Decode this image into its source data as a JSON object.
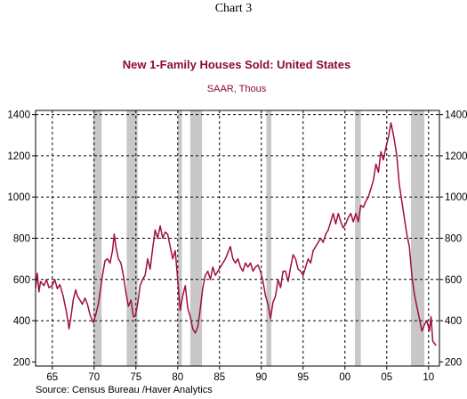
{
  "chart_label": "Chart 3",
  "chart_data": {
    "type": "line",
    "title": "New 1-Family Houses Sold: United States",
    "subtitle": "SAAR, Thous",
    "source": "Source:  Census Bureau /Haver Analytics",
    "x_ticks": [
      {
        "year": 1965,
        "label": "65"
      },
      {
        "year": 1970,
        "label": "70"
      },
      {
        "year": 1975,
        "label": "75"
      },
      {
        "year": 1980,
        "label": "80"
      },
      {
        "year": 1985,
        "label": "85"
      },
      {
        "year": 1990,
        "label": "90"
      },
      {
        "year": 1995,
        "label": "95"
      },
      {
        "year": 2000,
        "label": "00"
      },
      {
        "year": 2005,
        "label": "05"
      },
      {
        "year": 2010,
        "label": "10"
      }
    ],
    "xlim": [
      1963,
      2011.3
    ],
    "ylim": [
      180,
      1420
    ],
    "y_ticks": [
      200,
      400,
      600,
      800,
      1000,
      1200,
      1400
    ],
    "grid": true,
    "line_color": "#a0103a",
    "recession_color": "#c8c8c8",
    "recessions": [
      [
        1969.9,
        1970.9
      ],
      [
        1973.9,
        1975.2
      ],
      [
        1980.0,
        1980.5
      ],
      [
        1981.5,
        1982.9
      ],
      [
        1990.6,
        1991.2
      ],
      [
        2001.2,
        2001.9
      ],
      [
        2007.9,
        2009.5
      ]
    ],
    "series": [
      {
        "points": [
          [
            1963.0,
            560
          ],
          [
            1963.2,
            630
          ],
          [
            1963.4,
            540
          ],
          [
            1963.6,
            590
          ],
          [
            1963.8,
            580
          ],
          [
            1964.0,
            570
          ],
          [
            1964.3,
            600
          ],
          [
            1964.6,
            560
          ],
          [
            1965.0,
            570
          ],
          [
            1965.3,
            600
          ],
          [
            1965.6,
            555
          ],
          [
            1965.9,
            575
          ],
          [
            1966.3,
            520
          ],
          [
            1966.7,
            440
          ],
          [
            1967.0,
            360
          ],
          [
            1967.2,
            410
          ],
          [
            1967.5,
            500
          ],
          [
            1967.8,
            550
          ],
          [
            1968.0,
            520
          ],
          [
            1968.3,
            500
          ],
          [
            1968.6,
            480
          ],
          [
            1968.9,
            510
          ],
          [
            1969.2,
            480
          ],
          [
            1969.5,
            430
          ],
          [
            1969.9,
            390
          ],
          [
            1970.2,
            430
          ],
          [
            1970.5,
            480
          ],
          [
            1970.8,
            560
          ],
          [
            1971.0,
            620
          ],
          [
            1971.3,
            690
          ],
          [
            1971.6,
            700
          ],
          [
            1971.9,
            680
          ],
          [
            1972.2,
            740
          ],
          [
            1972.4,
            820
          ],
          [
            1972.6,
            760
          ],
          [
            1972.9,
            700
          ],
          [
            1973.2,
            680
          ],
          [
            1973.5,
            620
          ],
          [
            1973.8,
            540
          ],
          [
            1974.1,
            470
          ],
          [
            1974.4,
            500
          ],
          [
            1974.7,
            420
          ],
          [
            1974.9,
            420
          ],
          [
            1975.2,
            480
          ],
          [
            1975.5,
            570
          ],
          [
            1975.8,
            600
          ],
          [
            1976.1,
            620
          ],
          [
            1976.4,
            700
          ],
          [
            1976.7,
            650
          ],
          [
            1977.0,
            750
          ],
          [
            1977.3,
            840
          ],
          [
            1977.6,
            800
          ],
          [
            1977.9,
            860
          ],
          [
            1978.2,
            800
          ],
          [
            1978.5,
            830
          ],
          [
            1978.8,
            820
          ],
          [
            1979.1,
            760
          ],
          [
            1979.4,
            700
          ],
          [
            1979.7,
            740
          ],
          [
            1980.0,
            600
          ],
          [
            1980.3,
            450
          ],
          [
            1980.6,
            520
          ],
          [
            1980.9,
            570
          ],
          [
            1981.2,
            460
          ],
          [
            1981.5,
            420
          ],
          [
            1981.8,
            360
          ],
          [
            1982.1,
            340
          ],
          [
            1982.4,
            370
          ],
          [
            1982.7,
            460
          ],
          [
            1983.0,
            560
          ],
          [
            1983.3,
            620
          ],
          [
            1983.6,
            640
          ],
          [
            1983.9,
            600
          ],
          [
            1984.2,
            660
          ],
          [
            1984.5,
            620
          ],
          [
            1984.8,
            640
          ],
          [
            1985.1,
            660
          ],
          [
            1985.4,
            680
          ],
          [
            1985.7,
            700
          ],
          [
            1986.0,
            730
          ],
          [
            1986.3,
            760
          ],
          [
            1986.6,
            700
          ],
          [
            1986.9,
            680
          ],
          [
            1987.2,
            700
          ],
          [
            1987.5,
            660
          ],
          [
            1987.8,
            640
          ],
          [
            1988.1,
            680
          ],
          [
            1988.4,
            660
          ],
          [
            1988.7,
            680
          ],
          [
            1989.0,
            640
          ],
          [
            1989.3,
            660
          ],
          [
            1989.6,
            670
          ],
          [
            1989.9,
            640
          ],
          [
            1990.2,
            590
          ],
          [
            1990.5,
            520
          ],
          [
            1990.8,
            480
          ],
          [
            1991.1,
            410
          ],
          [
            1991.4,
            490
          ],
          [
            1991.7,
            520
          ],
          [
            1992.0,
            600
          ],
          [
            1992.3,
            560
          ],
          [
            1992.6,
            640
          ],
          [
            1992.9,
            640
          ],
          [
            1993.2,
            590
          ],
          [
            1993.5,
            660
          ],
          [
            1993.8,
            720
          ],
          [
            1994.1,
            700
          ],
          [
            1994.4,
            650
          ],
          [
            1994.7,
            640
          ],
          [
            1995.0,
            620
          ],
          [
            1995.3,
            660
          ],
          [
            1995.6,
            700
          ],
          [
            1995.9,
            680
          ],
          [
            1996.2,
            740
          ],
          [
            1996.5,
            760
          ],
          [
            1996.8,
            780
          ],
          [
            1997.1,
            800
          ],
          [
            1997.4,
            780
          ],
          [
            1997.7,
            820
          ],
          [
            1998.0,
            840
          ],
          [
            1998.3,
            880
          ],
          [
            1998.6,
            920
          ],
          [
            1998.9,
            870
          ],
          [
            1999.2,
            920
          ],
          [
            1999.5,
            880
          ],
          [
            1999.8,
            850
          ],
          [
            2000.1,
            870
          ],
          [
            2000.4,
            900
          ],
          [
            2000.7,
            920
          ],
          [
            2001.0,
            880
          ],
          [
            2001.3,
            920
          ],
          [
            2001.6,
            880
          ],
          [
            2001.9,
            960
          ],
          [
            2002.2,
            950
          ],
          [
            2002.5,
            980
          ],
          [
            2002.8,
            1000
          ],
          [
            2003.1,
            1040
          ],
          [
            2003.4,
            1080
          ],
          [
            2003.7,
            1160
          ],
          [
            2004.0,
            1120
          ],
          [
            2004.3,
            1220
          ],
          [
            2004.6,
            1180
          ],
          [
            2004.9,
            1240
          ],
          [
            2005.2,
            1290
          ],
          [
            2005.5,
            1360
          ],
          [
            2005.7,
            1320
          ],
          [
            2005.9,
            1280
          ],
          [
            2006.2,
            1200
          ],
          [
            2006.5,
            1060
          ],
          [
            2006.8,
            980
          ],
          [
            2007.1,
            900
          ],
          [
            2007.4,
            820
          ],
          [
            2007.7,
            760
          ],
          [
            2008.0,
            620
          ],
          [
            2008.3,
            530
          ],
          [
            2008.6,
            470
          ],
          [
            2008.9,
            410
          ],
          [
            2009.2,
            350
          ],
          [
            2009.5,
            380
          ],
          [
            2009.8,
            400
          ],
          [
            2010.1,
            350
          ],
          [
            2010.3,
            420
          ],
          [
            2010.5,
            300
          ],
          [
            2010.7,
            290
          ],
          [
            2010.9,
            280
          ]
        ]
      }
    ]
  }
}
